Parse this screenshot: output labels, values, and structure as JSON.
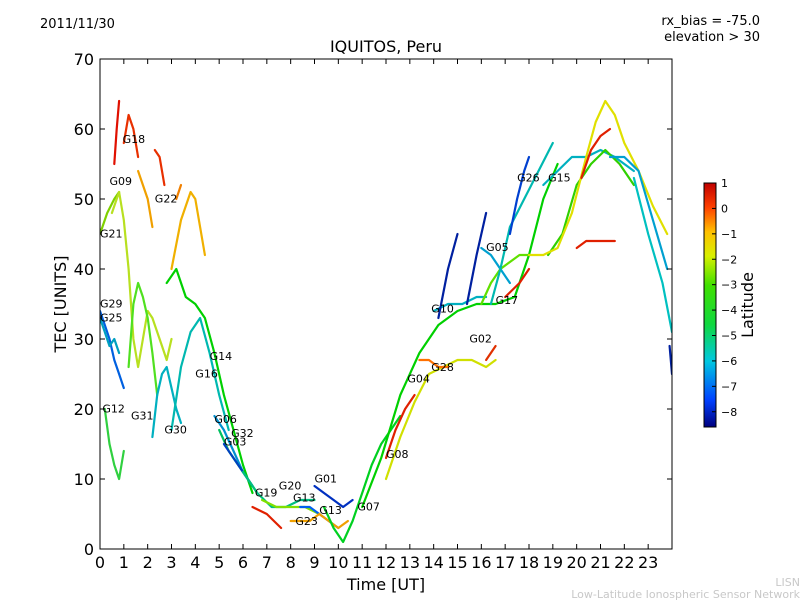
{
  "header": {
    "date": "2011/11/30",
    "rx_bias": "rx_bias = -75.0",
    "elevation": "elevation > 30"
  },
  "footer": {
    "line1": "LISN",
    "line2": "Low-Latitude Ionospheric Sensor Network"
  },
  "chart_data": {
    "type": "line",
    "title": "IQUITOS, Peru",
    "xlabel": "Time [UT]",
    "ylabel": "TEC [UNITS]",
    "xlim": [
      0,
      24
    ],
    "ylim": [
      0,
      70
    ],
    "xticks": [
      "0",
      "1",
      "2",
      "3",
      "4",
      "5",
      "6",
      "7",
      "8",
      "9",
      "10",
      "11",
      "12",
      "13",
      "14",
      "15",
      "16",
      "17",
      "18",
      "19",
      "20",
      "21",
      "22",
      "23"
    ],
    "yticks": [
      "0",
      "10",
      "20",
      "30",
      "40",
      "50",
      "60",
      "70"
    ],
    "grid": false,
    "colorbar": {
      "label": "Latitude",
      "min": -8.6,
      "max": 1,
      "ticks": [
        "1",
        "0",
        "−1",
        "−2",
        "−3",
        "−4",
        "−5",
        "−6",
        "−7",
        "−8"
      ],
      "tick_values": [
        1,
        0,
        -1,
        -2,
        -3,
        -4,
        -5,
        -6,
        -7,
        -8
      ],
      "colormap": [
        "#00007f",
        "#0050ff",
        "#00d4ff",
        "#29ff6b",
        "#00d000",
        "#b8ff2a",
        "#ffd000",
        "#ff6a00",
        "#c80000"
      ]
    },
    "series": [
      {
        "name": "G21",
        "color": "#7fd000",
        "x": [
          0.0,
          0.3,
          0.6,
          0.8
        ],
        "y": [
          45,
          48,
          50,
          51
        ]
      },
      {
        "name": "G09",
        "color": "#b8e020",
        "x": [
          0.5,
          0.8,
          1.0,
          1.2,
          1.4,
          1.6,
          1.8,
          2.0,
          2.2,
          2.4,
          2.6,
          2.8,
          3.0
        ],
        "y": [
          48,
          51,
          47,
          40,
          30,
          26,
          30,
          34,
          33,
          31,
          29,
          27,
          30
        ]
      },
      {
        "name": "G18",
        "color": "#e01000",
        "x": [
          0.6,
          0.7,
          0.8
        ],
        "y": [
          55,
          60,
          64
        ]
      },
      {
        "name": "G18",
        "color": "#e83000",
        "x": [
          1.0,
          1.2,
          1.4,
          1.6
        ],
        "y": [
          58,
          62,
          60,
          56
        ]
      },
      {
        "name": "G18",
        "color": "#f0a000",
        "x": [
          1.6,
          1.8,
          2.0,
          2.2
        ],
        "y": [
          54,
          52,
          50,
          46
        ]
      },
      {
        "name": "G22",
        "color": "#e83000",
        "x": [
          2.3,
          2.5,
          2.7
        ],
        "y": [
          57,
          56,
          52
        ]
      },
      {
        "name": "G22",
        "color": "#f08000",
        "x": [
          3.2,
          3.4
        ],
        "y": [
          50,
          52
        ]
      },
      {
        "name": "G22",
        "color": "#f0b000",
        "x": [
          3.0,
          3.4,
          3.8,
          4.0,
          4.2,
          4.4
        ],
        "y": [
          40,
          47,
          51,
          50,
          46,
          42
        ]
      },
      {
        "name": "G29",
        "color": "#0060e0",
        "x": [
          0.0,
          0.2,
          0.4,
          0.6,
          0.8,
          1.0
        ],
        "y": [
          34,
          32,
          30,
          27,
          25,
          23
        ]
      },
      {
        "name": "G25",
        "color": "#00a0c0",
        "x": [
          0.0,
          0.2,
          0.4,
          0.6,
          0.8
        ],
        "y": [
          33,
          31,
          29,
          30,
          28
        ]
      },
      {
        "name": "G12",
        "color": "#30d040",
        "x": [
          0.2,
          0.4,
          0.6,
          0.8,
          1.0
        ],
        "y": [
          20,
          15,
          12,
          10,
          14
        ]
      },
      {
        "name": "G31",
        "color": "#50e020",
        "x": [
          1.2,
          1.4,
          1.6,
          1.8,
          2.0,
          2.2,
          2.4
        ],
        "y": [
          26,
          35,
          38,
          36,
          33,
          28,
          22
        ]
      },
      {
        "name": "G30",
        "color": "#00b0c0",
        "x": [
          2.2,
          2.4,
          2.6,
          2.8,
          3.0,
          3.2,
          3.4
        ],
        "y": [
          16,
          22,
          25,
          26,
          23,
          20,
          18
        ]
      },
      {
        "name": "G16",
        "color": "#00b8b0",
        "x": [
          3.0,
          3.4,
          3.8,
          4.2,
          4.6,
          5.0,
          5.4
        ],
        "y": [
          17,
          26,
          31,
          33,
          28,
          22,
          17
        ]
      },
      {
        "name": "G14",
        "color": "#00d000",
        "x": [
          2.8,
          3.2,
          3.6,
          4.0,
          4.4,
          4.8,
          5.2,
          5.6,
          6.0,
          6.4
        ],
        "y": [
          38,
          40,
          36,
          35,
          33,
          28,
          22,
          17,
          12,
          8
        ]
      },
      {
        "name": "G06",
        "color": "#0090d0",
        "x": [
          4.8,
          5.2,
          5.6,
          6.0,
          6.4
        ],
        "y": [
          19,
          17,
          14,
          11,
          9
        ]
      },
      {
        "name": "G32",
        "color": "#00c060",
        "x": [
          5.0,
          5.4,
          5.8,
          6.2,
          6.6
        ],
        "y": [
          17,
          14,
          12,
          10,
          8
        ]
      },
      {
        "name": "G03",
        "color": "#0040c0",
        "x": [
          5.2,
          5.6,
          6.0,
          6.4
        ],
        "y": [
          15,
          13,
          11,
          9
        ]
      },
      {
        "name": "G19",
        "color": "#00c080",
        "x": [
          6.0,
          6.6,
          7.2,
          7.8,
          8.4,
          9.0
        ],
        "y": [
          11,
          8,
          6,
          6,
          7,
          7
        ]
      },
      {
        "name": "G20",
        "color": "#80e000",
        "x": [
          6.8,
          7.4,
          8.0,
          8.6,
          9.2
        ],
        "y": [
          7,
          6,
          6,
          6,
          5
        ]
      },
      {
        "name": "G13",
        "color": "#0060f0",
        "x": [
          8.4,
          8.8,
          9.2,
          9.6,
          10.0
        ],
        "y": [
          6,
          6,
          5,
          4,
          3
        ]
      },
      {
        "name": "G23",
        "color": "#e02000",
        "x": [
          6.4,
          7.0,
          7.6
        ],
        "y": [
          6,
          5,
          3
        ]
      },
      {
        "name": "G23",
        "color": "#f0a000",
        "x": [
          8.0,
          8.4,
          8.8,
          9.2,
          9.6,
          10.0,
          10.4
        ],
        "y": [
          4,
          4,
          4,
          5,
          4,
          3,
          4
        ]
      },
      {
        "name": "G01",
        "color": "#0030c0",
        "x": [
          9.0,
          9.4,
          9.8,
          10.2,
          10.6
        ],
        "y": [
          9,
          8,
          7,
          6,
          7
        ]
      },
      {
        "name": "G07",
        "color": "#00d020",
        "x": [
          9.4,
          9.8,
          10.2,
          10.6,
          11.0,
          11.4,
          11.8,
          12.2,
          12.6
        ],
        "y": [
          6,
          3,
          1,
          4,
          8,
          12,
          15,
          17,
          19
        ]
      },
      {
        "name": "G08",
        "color": "#e02000",
        "x": [
          12.0,
          12.4,
          12.8,
          13.2
        ],
        "y": [
          13,
          17,
          20,
          22
        ]
      },
      {
        "name": "G04",
        "color": "#d0e000",
        "x": [
          12.0,
          12.6,
          13.2,
          13.8,
          14.4,
          15.0,
          15.6,
          16.2,
          16.6
        ],
        "y": [
          10,
          16,
          21,
          25,
          26,
          27,
          27,
          26,
          27
        ]
      },
      {
        "name": "G04",
        "color": "#ff7000",
        "x": [
          13.4,
          13.8,
          14.2,
          14.6
        ],
        "y": [
          27,
          27,
          26,
          26
        ]
      },
      {
        "name": "G28",
        "color": "#e03000",
        "x": [
          16.2,
          16.6
        ],
        "y": [
          27,
          29
        ]
      },
      {
        "name": "G10",
        "color": "#00d000",
        "x": [
          11.0,
          11.8,
          12.6,
          13.4,
          14.2,
          15.0,
          15.8,
          16.6,
          17.4,
          18.0,
          18.6,
          19.2
        ],
        "y": [
          6,
          13,
          22,
          28,
          32,
          34,
          35,
          35,
          36,
          42,
          50,
          55
        ]
      },
      {
        "name": "G02",
        "color": "#00b0c0",
        "x": [
          14.0,
          14.6,
          15.2,
          15.8,
          16.2
        ],
        "y": [
          34,
          35,
          35,
          36,
          36
        ]
      },
      {
        "name": "G17",
        "color": "#60e000",
        "x": [
          16.0,
          16.4,
          16.8,
          17.2,
          17.6,
          18.0
        ],
        "y": [
          35,
          38,
          40,
          41,
          42,
          42
        ]
      },
      {
        "name": "G17",
        "color": "#e02000",
        "x": [
          17.0,
          17.6,
          18.0
        ],
        "y": [
          36,
          38,
          40
        ]
      },
      {
        "name": "G05",
        "color": "#00a0d0",
        "x": [
          16.0,
          16.4,
          16.8,
          17.2
        ],
        "y": [
          43,
          42,
          40,
          38
        ]
      },
      {
        "name": "G05",
        "color": "#00b8b0",
        "x": [
          16.4,
          16.8,
          17.2,
          17.8,
          18.4,
          19.0
        ],
        "y": [
          35,
          40,
          46,
          50,
          54,
          58
        ]
      },
      {
        "name": "G26",
        "color": "#0040d0",
        "x": [
          17.2,
          17.5,
          17.8,
          18.0
        ],
        "y": [
          45,
          50,
          54,
          56
        ]
      },
      {
        "name": "G26",
        "color": "#0020a0",
        "x": [
          14.2,
          14.6,
          15.0
        ],
        "y": [
          33,
          40,
          45
        ]
      },
      {
        "name": "G26",
        "color": "#0020a0",
        "x": [
          15.4,
          15.8,
          16.2
        ],
        "y": [
          35,
          42,
          48
        ]
      },
      {
        "name": "G15",
        "color": "#00b0c0",
        "x": [
          18.6,
          19.2,
          19.8,
          20.4,
          21.0,
          21.6,
          22.0,
          22.4
        ],
        "y": [
          52,
          54,
          56,
          56,
          57,
          56,
          55,
          54
        ]
      },
      {
        "name": "G15",
        "color": "#30d000",
        "x": [
          18.8,
          19.4,
          20.0,
          20.6,
          21.2,
          21.8,
          22.4
        ],
        "y": [
          42,
          45,
          52,
          55,
          57,
          55,
          52
        ]
      },
      {
        "name": "G15",
        "color": "#e0e000",
        "x": [
          18.0,
          18.6,
          19.2,
          19.8,
          20.4,
          20.8,
          21.2,
          21.6,
          22.0,
          22.6,
          23.2,
          23.8
        ],
        "y": [
          42,
          42,
          43,
          48,
          56,
          61,
          64,
          62,
          58,
          54,
          49,
          45
        ]
      },
      {
        "name": "G15",
        "color": "#00a0d0",
        "x": [
          21.4,
          22.0,
          22.6,
          23.2,
          23.8
        ],
        "y": [
          56,
          56,
          54,
          47,
          40
        ]
      },
      {
        "name": "G15",
        "color": "#00c0c0",
        "x": [
          22.4,
          23.0,
          23.6,
          24.0
        ],
        "y": [
          53,
          45,
          38,
          31
        ]
      },
      {
        "name": "G15",
        "color": "#e02000",
        "x": [
          20.0,
          20.4,
          20.8,
          21.2,
          21.6
        ],
        "y": [
          43,
          44,
          44,
          44,
          44
        ]
      },
      {
        "name": "G15",
        "color": "#e02000",
        "x": [
          20.2,
          20.6,
          21.0,
          21.4
        ],
        "y": [
          53,
          57,
          59,
          60
        ]
      },
      {
        "name": "G15",
        "color": "#0020a0",
        "x": [
          23.9,
          24.0
        ],
        "y": [
          29,
          25
        ]
      }
    ],
    "labels": [
      {
        "text": "G18",
        "x": 0.95,
        "y": 58.0
      },
      {
        "text": "G09",
        "x": 0.4,
        "y": 52.0
      },
      {
        "text": "G22",
        "x": 2.3,
        "y": 49.5
      },
      {
        "text": "G21",
        "x": 0.0,
        "y": 44.5
      },
      {
        "text": "G29",
        "x": 0.0,
        "y": 34.5
      },
      {
        "text": "G25",
        "x": 0.0,
        "y": 32.5
      },
      {
        "text": "G14",
        "x": 4.6,
        "y": 27.0
      },
      {
        "text": "G16",
        "x": 4.0,
        "y": 24.5
      },
      {
        "text": "G12",
        "x": 0.1,
        "y": 19.5
      },
      {
        "text": "G31",
        "x": 1.3,
        "y": 18.5
      },
      {
        "text": "G06",
        "x": 4.8,
        "y": 18.0
      },
      {
        "text": "G30",
        "x": 2.7,
        "y": 16.5
      },
      {
        "text": "G32",
        "x": 5.5,
        "y": 16.0
      },
      {
        "text": "G03",
        "x": 5.2,
        "y": 14.8
      },
      {
        "text": "G01",
        "x": 9.0,
        "y": 9.5
      },
      {
        "text": "G20",
        "x": 7.5,
        "y": 8.5
      },
      {
        "text": "G19",
        "x": 6.5,
        "y": 7.5
      },
      {
        "text": "G13",
        "x": 8.1,
        "y": 6.8
      },
      {
        "text": "G07",
        "x": 10.8,
        "y": 5.5
      },
      {
        "text": "G13",
        "x": 9.2,
        "y": 5.0
      },
      {
        "text": "G23",
        "x": 8.2,
        "y": 3.4
      },
      {
        "text": "G08",
        "x": 12.0,
        "y": 13.0
      },
      {
        "text": "G04",
        "x": 12.9,
        "y": 23.8
      },
      {
        "text": "G28",
        "x": 13.9,
        "y": 25.4
      },
      {
        "text": "G02",
        "x": 15.5,
        "y": 29.5
      },
      {
        "text": "G10",
        "x": 13.9,
        "y": 33.8
      },
      {
        "text": "G17",
        "x": 16.6,
        "y": 35.0
      },
      {
        "text": "G05",
        "x": 16.2,
        "y": 42.6
      },
      {
        "text": "G26",
        "x": 17.5,
        "y": 52.5
      },
      {
        "text": "G15",
        "x": 18.8,
        "y": 52.5
      }
    ]
  }
}
